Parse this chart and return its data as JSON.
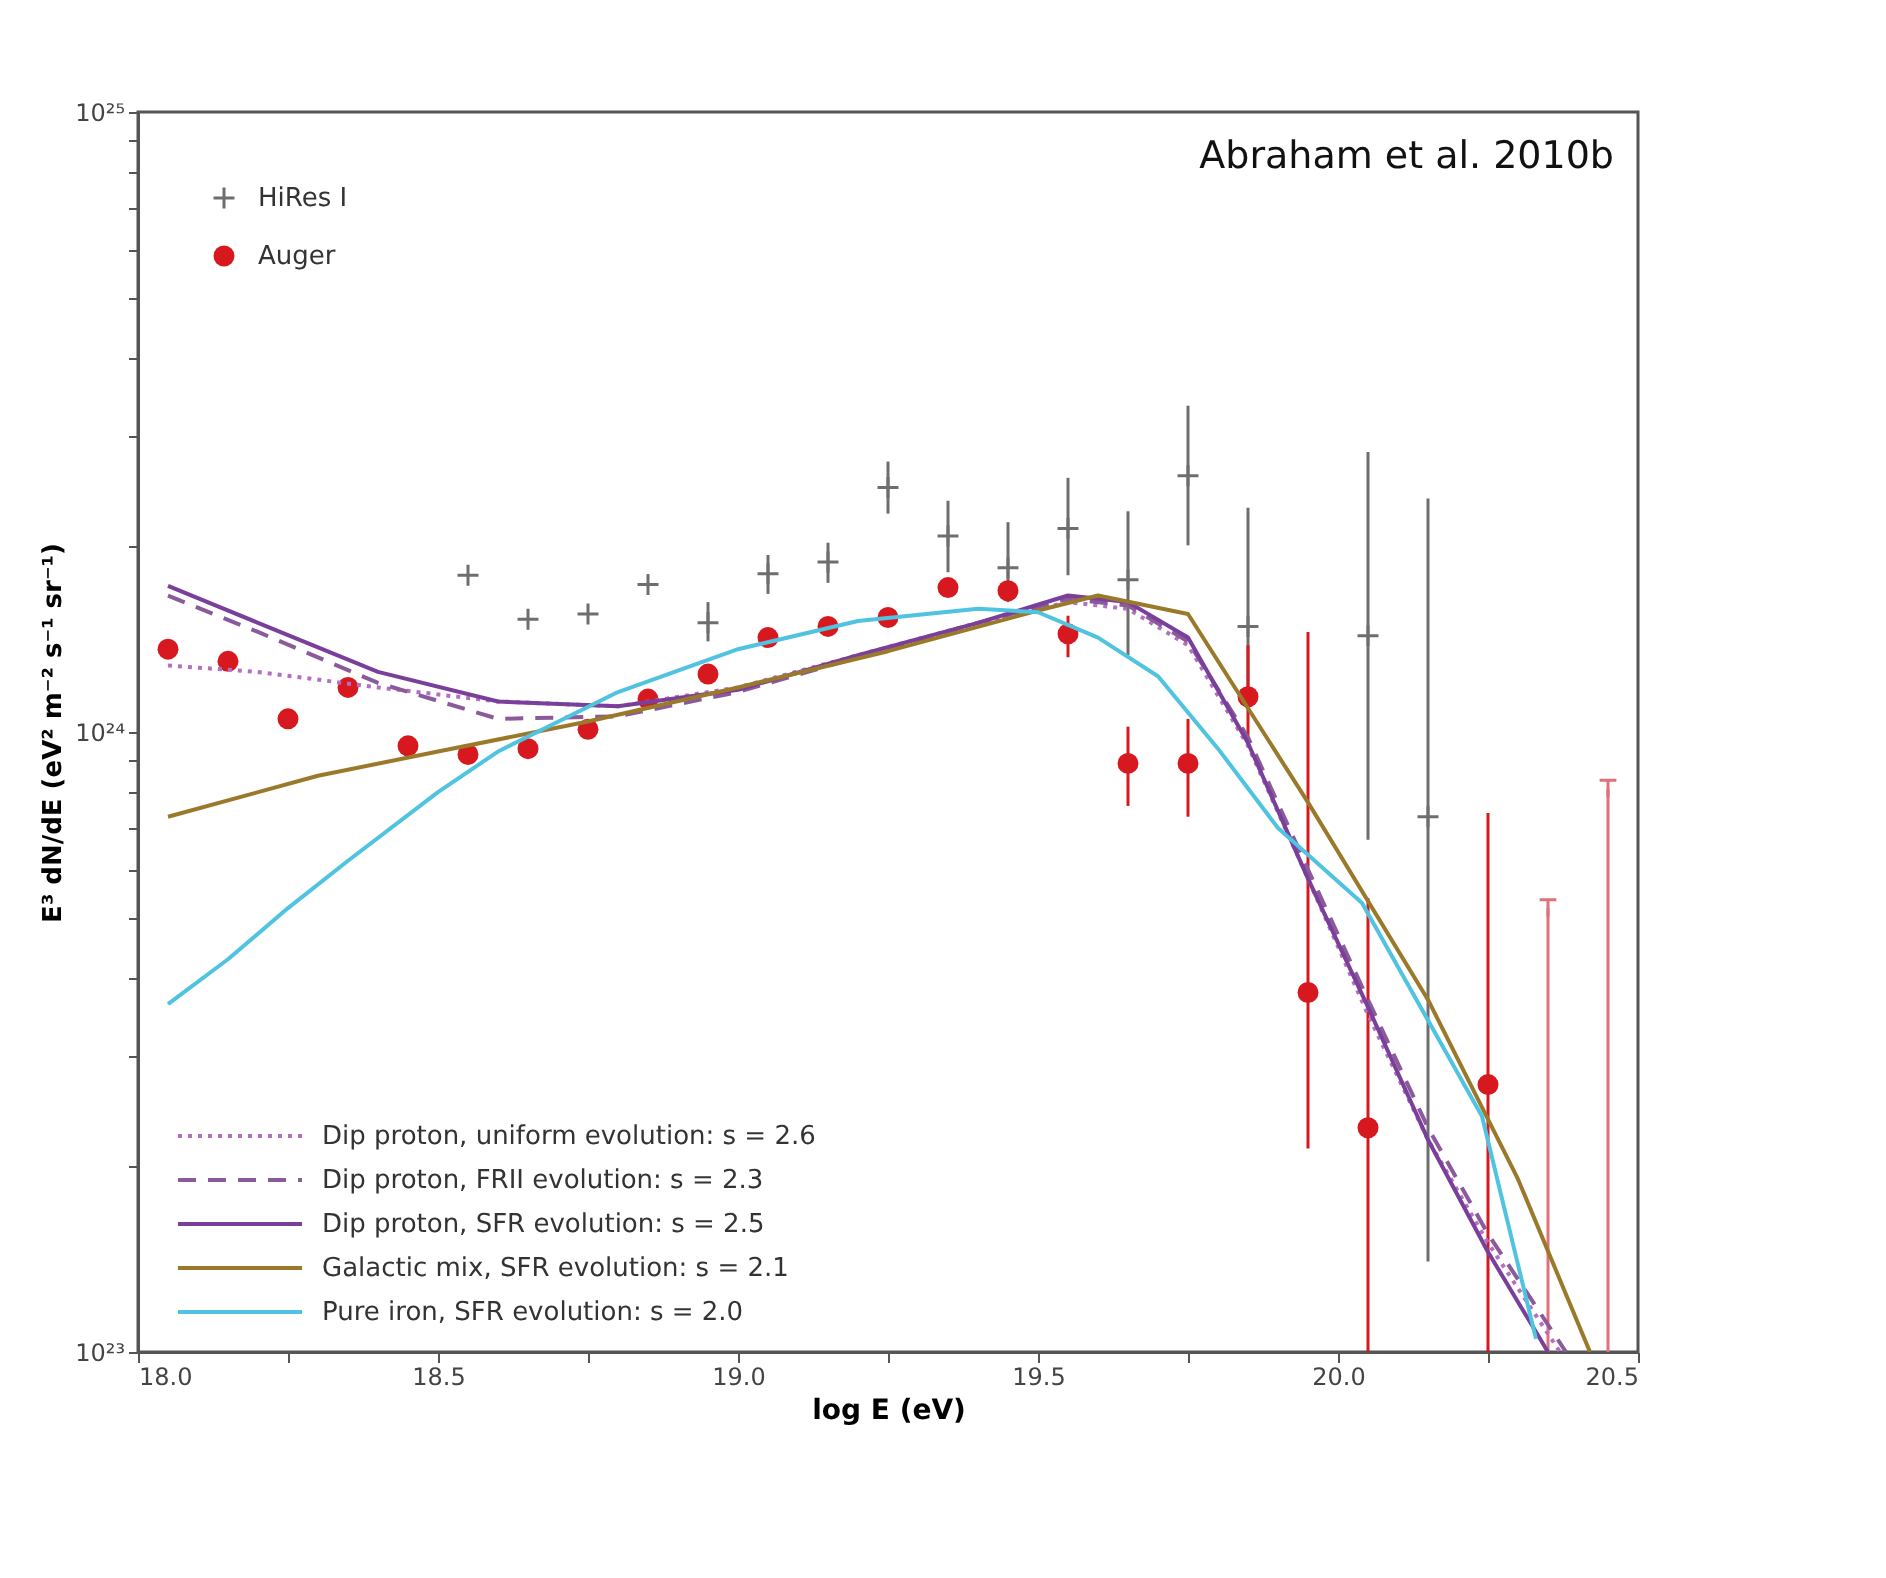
{
  "chart_data": {
    "type": "line",
    "xlabel": "log E (eV)",
    "ylabel": "E³ dN/dE (eV² m⁻² s⁻¹ sr⁻¹)",
    "annotations": [
      "Abraham et al. 2010b"
    ],
    "log": "y",
    "grid": false,
    "legend": "left",
    "xlim": [
      18.0,
      20.5
    ],
    "xticks": [
      {
        "value": 18.0,
        "label": "18.0"
      },
      {
        "value": 18.25,
        "label": null
      },
      {
        "value": 18.5,
        "label": "18.5"
      },
      {
        "value": 18.75,
        "label": null
      },
      {
        "value": 19.0,
        "label": "19.0"
      },
      {
        "value": 19.25,
        "label": null
      },
      {
        "value": 19.5,
        "label": "19.5"
      },
      {
        "value": 19.75,
        "label": null
      },
      {
        "value": 20.0,
        "label": "20.0"
      },
      {
        "value": 20.25,
        "label": null
      },
      {
        "value": 20.5,
        "label": "20.5"
      }
    ],
    "ylim": [
      1e+23,
      1e+25
    ],
    "yticks": [
      {
        "value": 1e+23,
        "label": "10²³"
      },
      {
        "value": 2e+23,
        "label": null
      },
      {
        "value": 3e+23,
        "label": null
      },
      {
        "value": 4e+23,
        "label": null
      },
      {
        "value": 5e+23,
        "label": null
      },
      {
        "value": 6e+23,
        "label": null
      },
      {
        "value": 7e+23,
        "label": null
      },
      {
        "value": 8e+23,
        "label": null
      },
      {
        "value": 9e+23,
        "label": null
      },
      {
        "value": 1e+24,
        "label": "10²⁴"
      },
      {
        "value": 2e+24,
        "label": null
      },
      {
        "value": 3e+24,
        "label": null
      },
      {
        "value": 4e+24,
        "label": null
      },
      {
        "value": 5e+24,
        "label": null
      },
      {
        "value": 6e+24,
        "label": null
      },
      {
        "value": 7e+24,
        "label": null
      },
      {
        "value": 8e+24,
        "label": null
      },
      {
        "value": 9e+24,
        "label": null
      },
      {
        "value": 1e+25,
        "label": "10²⁵"
      }
    ],
    "series": [
      {
        "name": "HiRes I",
        "type": "scatter",
        "marker": "cross",
        "color": "#6e6e6e",
        "x": [
          18.55,
          18.65,
          18.75,
          18.85,
          18.95,
          19.05,
          19.15,
          19.25,
          19.35,
          19.45,
          19.55,
          19.65,
          19.75,
          19.85,
          20.05,
          20.15
        ],
        "values": [
          1.79e+24,
          1.52e+24,
          1.55e+24,
          1.73e+24,
          1.5e+24,
          1.8e+24,
          1.88e+24,
          2.48e+24,
          2.07e+24,
          1.84e+24,
          2.13e+24,
          1.76e+24,
          2.59e+24,
          1.48e+24,
          1.43e+24,
          7.3e+23
        ],
        "errors": [
          null,
          null,
          null,
          null,
          [
            1.4e+24,
            1.62e+24
          ],
          [
            1.67e+24,
            1.93e+24
          ],
          [
            1.74e+24,
            2.02e+24
          ],
          [
            2.25e+24,
            2.73e+24
          ],
          [
            1.81e+24,
            2.36e+24
          ],
          [
            1.62e+24,
            2.18e+24
          ],
          [
            1.79e+24,
            2.57e+24
          ],
          [
            1.33e+24,
            2.27e+24
          ],
          [
            2e+24,
            3.36e+24
          ],
          [
            1.15e+24,
            2.3e+24
          ],
          [
            6.7e+23,
            2.83e+24
          ],
          [
            1.4e+23,
            2.38e+24
          ]
        ]
      },
      {
        "name": "Auger",
        "type": "scatter",
        "marker": "circle",
        "color": "#d7191f",
        "x": [
          18.05,
          18.15,
          18.25,
          18.35,
          18.45,
          18.55,
          18.65,
          18.75,
          18.85,
          18.95,
          19.05,
          19.15,
          19.25,
          19.35,
          19.45,
          19.55,
          19.65,
          19.75,
          19.85,
          19.95,
          20.05,
          20.25
        ],
        "values": [
          1.36e+24,
          1.3e+24,
          1.05e+24,
          1.18e+24,
          9.5e+23,
          9.2e+23,
          9.4e+23,
          1.01e+24,
          1.13e+24,
          1.24e+24,
          1.42e+24,
          1.48e+24,
          1.53e+24,
          1.71e+24,
          1.69e+24,
          1.44e+24,
          8.9e+23,
          8.9e+23,
          1.14e+24,
          3.8e+23,
          2.3e+23,
          2.7e+23
        ],
        "errors": [
          null,
          null,
          null,
          null,
          null,
          null,
          null,
          null,
          null,
          null,
          null,
          null,
          null,
          null,
          null,
          [
            1.32e+24,
            1.54e+24
          ],
          [
            7.6e+23,
            1.02e+24
          ],
          [
            7.3e+23,
            1.05e+24
          ],
          [
            9.6e+23,
            1.38e+24
          ],
          [
            2.13e+23,
            1.45e+24
          ],
          [
            1e+23,
            5.4e+23
          ],
          [
            1e+23,
            7.4e+23
          ]
        ]
      },
      {
        "type": "scatter",
        "color": "#e0707a",
        "x": [
          20.35,
          20.45
        ],
        "values": [
          5.2e+23,
          8.1e+23
        ],
        "errors": [
          [
            1e+23,
            5.2e+23
          ],
          [
            1e+23,
            8.1e+23
          ]
        ]
      },
      {
        "name": "Dip proton, uniform evolution: s = 2.6",
        "line_style": "dotted",
        "color": "#b46fc4",
        "x": [
          18.05,
          18.2,
          18.4,
          18.6,
          18.8,
          19.0,
          19.2,
          19.4,
          19.55,
          19.65,
          19.75,
          19.85,
          19.95,
          20.05,
          20.15,
          20.25,
          20.37
        ],
        "values": [
          1.28e+24,
          1.25e+24,
          1.18e+24,
          1.12e+24,
          1.1e+24,
          1.18e+24,
          1.33e+24,
          1.5e+24,
          1.62e+24,
          1.58e+24,
          1.38e+24,
          9.5e+23,
          5.8e+23,
          3.5e+23,
          2.2e+23,
          1.5e+23,
          1e+23
        ]
      },
      {
        "name": "Dip proton, FRII evolution: s = 2.3",
        "line_style": "dashed",
        "color": "#8a5a9a",
        "x": [
          18.05,
          18.2,
          18.4,
          18.6,
          18.8,
          19.0,
          19.2,
          19.4,
          19.55,
          19.65,
          19.75,
          19.85,
          19.95,
          20.05,
          20.15,
          20.25,
          20.38
        ],
        "values": [
          1.66e+24,
          1.45e+24,
          1.2e+24,
          1.05e+24,
          1.06e+24,
          1.16e+24,
          1.32e+24,
          1.5e+24,
          1.64e+24,
          1.6e+24,
          1.4e+24,
          9.8e+23,
          6e+23,
          3.7e+23,
          2.3e+23,
          1.55e+23,
          1e+23
        ]
      },
      {
        "name": "Dip proton, SFR evolution: s = 2.5",
        "line_style": "solid",
        "color": "#7a3f9a",
        "x": [
          18.05,
          18.2,
          18.4,
          18.6,
          18.8,
          19.0,
          19.2,
          19.4,
          19.55,
          19.65,
          19.75,
          19.85,
          19.95,
          20.05,
          20.15,
          20.25,
          20.35
        ],
        "values": [
          1.72e+24,
          1.5e+24,
          1.25e+24,
          1.12e+24,
          1.1e+24,
          1.17e+24,
          1.33e+24,
          1.5e+24,
          1.66e+24,
          1.62e+24,
          1.42e+24,
          9.6e+23,
          5.8e+23,
          3.6e+23,
          2.2e+23,
          1.45e+23,
          1e+23
        ]
      },
      {
        "name": "Galactic mix, SFR evolution: s = 2.1",
        "line_style": "solid",
        "color": "#9a7a2a",
        "x": [
          18.05,
          18.3,
          18.5,
          18.75,
          19.0,
          19.25,
          19.5,
          19.6,
          19.75,
          19.95,
          20.15,
          20.3,
          20.42
        ],
        "values": [
          7.3e+23,
          8.5e+23,
          9.3e+23,
          1.04e+24,
          1.18e+24,
          1.35e+24,
          1.57e+24,
          1.66e+24,
          1.55e+24,
          7.7e+23,
          3.7e+23,
          1.9e+23,
          1e+23
        ]
      },
      {
        "name": "Pure iron, SFR evolution: s = 2.0",
        "line_style": "solid",
        "color": "#4fc3e0",
        "x": [
          18.05,
          18.15,
          18.25,
          18.35,
          18.5,
          18.6,
          18.8,
          19.0,
          19.2,
          19.4,
          19.5,
          19.6,
          19.7,
          19.8,
          19.9,
          20.04,
          20.24,
          20.33
        ],
        "values": [
          3.64e+23,
          4.3e+23,
          5.2e+23,
          6.2e+23,
          8e+23,
          9.3e+23,
          1.16e+24,
          1.36e+24,
          1.51e+24,
          1.58e+24,
          1.56e+24,
          1.42e+24,
          1.23e+24,
          9.4e+23,
          7e+23,
          5.3e+23,
          2.4e+23,
          1.05e+23
        ]
      }
    ]
  }
}
